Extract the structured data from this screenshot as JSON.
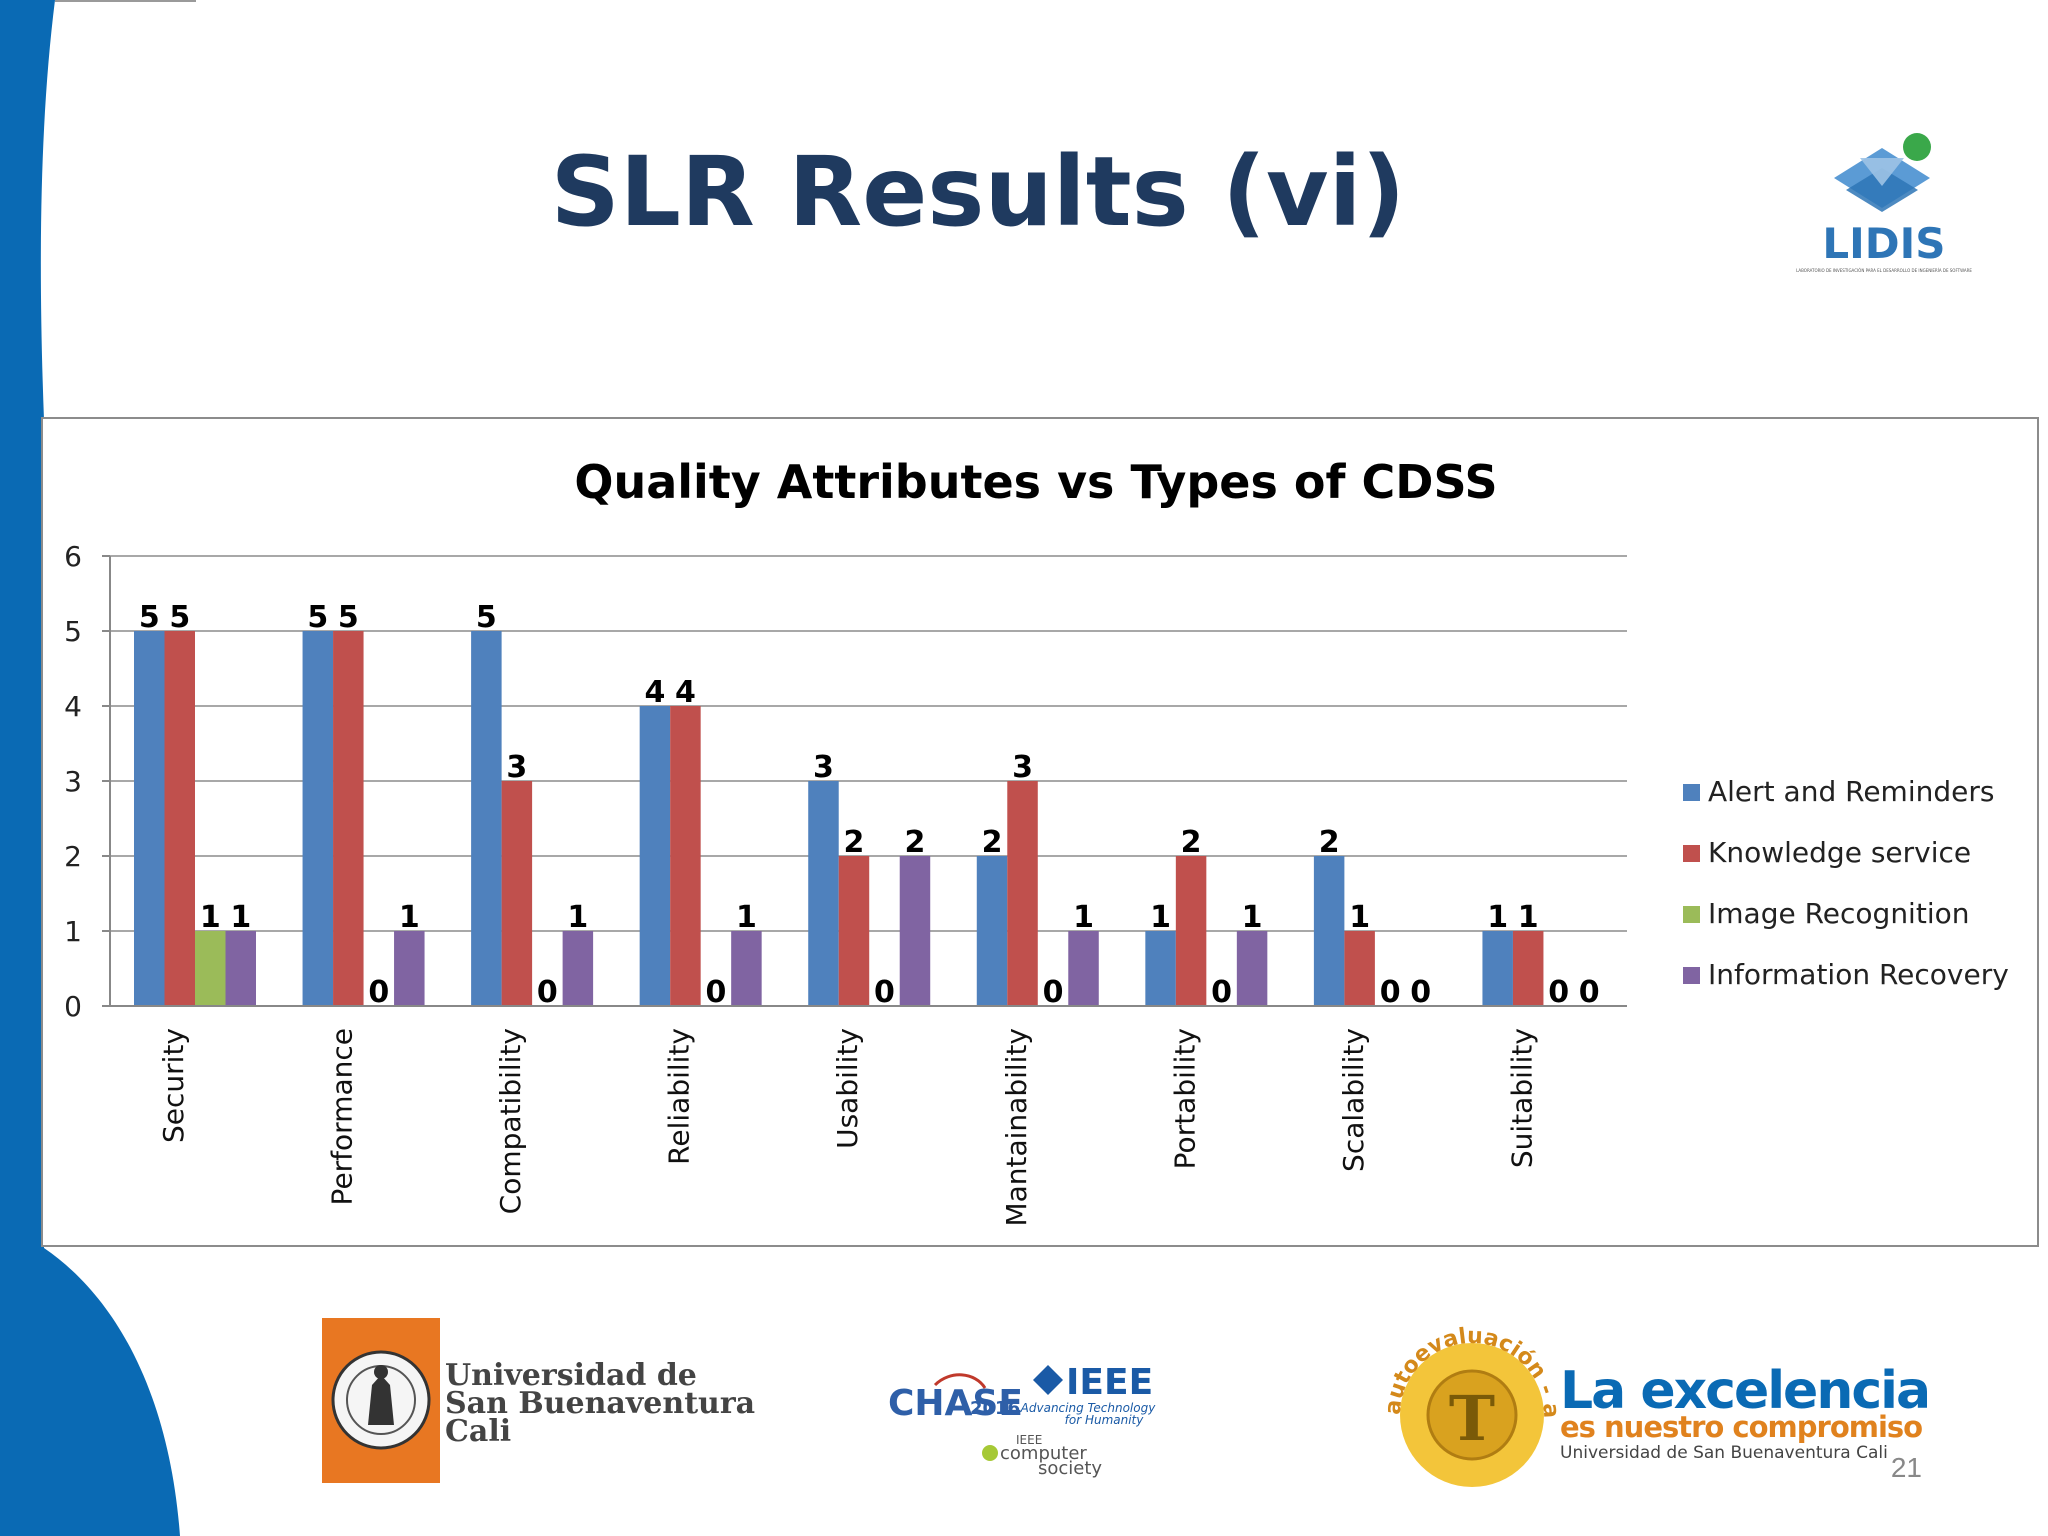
{
  "slide": {
    "title": "SLR Results (vi)",
    "page_number": "21"
  },
  "logos": {
    "lidis": {
      "name": "LIDIS",
      "subtitle": "LABORATORIO DE INVESTIGACIÓN PARA EL DESARROLLO DE INGENIERÍA DE SOFTWARE"
    },
    "usb": {
      "line1": "Universidad de",
      "line2": "San Buenaventura",
      "line3": "Cali"
    },
    "chase": {
      "text": "CHASE",
      "year": "2016"
    },
    "ieee": {
      "text": "IEEE",
      "tagline1": "Advancing Technology",
      "tagline2": "for Humanity"
    },
    "computer_society": {
      "line0": "IEEE",
      "line1": "computer",
      "line2": "society"
    },
    "seal": {
      "text": "autoevaluación - acreditación"
    },
    "excellence": {
      "line1": "La excelencia",
      "line2": "es nuestro compromiso",
      "line3": "Universidad de San Buenaventura Cali"
    }
  },
  "colors": {
    "title": "#1f3a5f",
    "series": [
      "#4f81bd",
      "#c0504d",
      "#9bbb59",
      "#8064a2"
    ],
    "sidebar": "#0a6ab4"
  },
  "chart_data": {
    "type": "bar",
    "title": "Quality Attributes vs Types of CDSS",
    "xlabel": "",
    "ylabel": "",
    "ylim": [
      0,
      6
    ],
    "yticks": [
      "0",
      "1",
      "2",
      "3",
      "4",
      "5",
      "6"
    ],
    "grid": true,
    "legend_position": "right",
    "categories": [
      "Security",
      "Performance",
      "Compatibility",
      "Reliability",
      "Usability",
      "Mantainability",
      "Portability",
      "Scalability",
      "Suitability"
    ],
    "series": [
      {
        "name": "Alert and Reminders",
        "values": [
          5,
          5,
          5,
          4,
          3,
          2,
          1,
          2,
          1
        ]
      },
      {
        "name": "Knowledge service",
        "values": [
          5,
          5,
          3,
          4,
          2,
          3,
          2,
          1,
          1
        ]
      },
      {
        "name": "Image Recognition",
        "values": [
          1,
          0,
          0,
          0,
          0,
          0,
          0,
          0,
          0
        ]
      },
      {
        "name": "Information Recovery",
        "values": [
          1,
          1,
          1,
          1,
          2,
          1,
          1,
          0,
          0
        ]
      }
    ],
    "data_labels_shown": [
      [
        true,
        true,
        true,
        true,
        true,
        true,
        true,
        true,
        true
      ],
      [
        true,
        true,
        true,
        true,
        true,
        true,
        true,
        true,
        true
      ],
      [
        true,
        true,
        true,
        true,
        true,
        true,
        true,
        true,
        true
      ],
      [
        true,
        true,
        true,
        true,
        true,
        true,
        true,
        true,
        true
      ]
    ]
  }
}
